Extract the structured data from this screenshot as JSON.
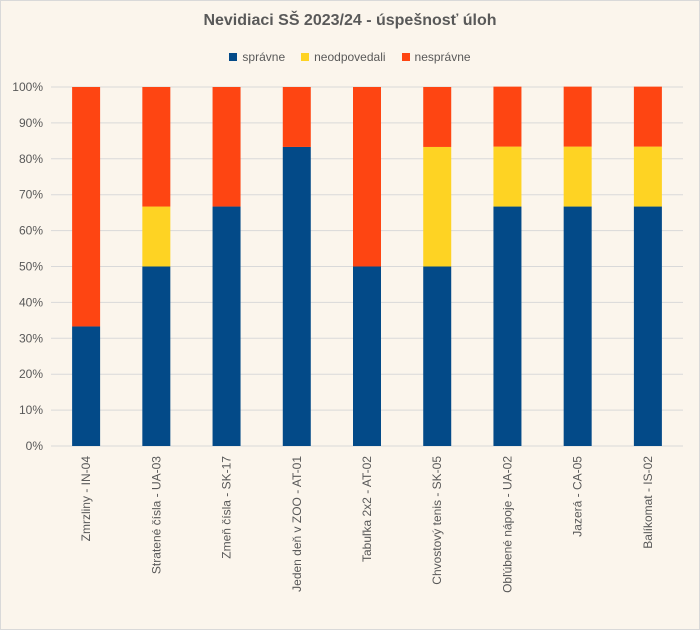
{
  "chart_data": {
    "type": "bar",
    "stacked": true,
    "title": "Nevidiaci SŠ 2023/24 - úspešnosť úloh",
    "categories": [
      "Zmrzliny - IN-04",
      "Stratené čísla - UA-03",
      "Zmeň čísla - SK-17",
      "Jeden deň v ZOO - AT-01",
      "Tabuľka 2x2 - AT-02",
      "Chvostový tenis - SK-05",
      "Obľúbené nápoje - UA-02",
      "Jazerá - CA-05",
      "Balíkomat - IS-02"
    ],
    "series": [
      {
        "name": "správne",
        "color": "#034a88",
        "values": [
          33.3,
          50,
          66.7,
          83.3,
          50,
          50,
          66.7,
          66.7,
          66.7
        ]
      },
      {
        "name": "neodpovedali",
        "color": "#fed323",
        "values": [
          0,
          16.7,
          0,
          0,
          0,
          33.3,
          16.7,
          16.7,
          16.7
        ]
      },
      {
        "name": "nesprávne",
        "color": "#fe4512",
        "values": [
          66.7,
          33.3,
          33.3,
          16.7,
          50,
          16.7,
          16.7,
          16.7,
          16.7
        ]
      }
    ],
    "ylim": [
      0,
      100
    ],
    "yticks": [
      "0%",
      "10%",
      "20%",
      "30%",
      "40%",
      "50%",
      "60%",
      "70%",
      "80%",
      "90%",
      "100%"
    ],
    "grid": true,
    "legend": "top"
  }
}
